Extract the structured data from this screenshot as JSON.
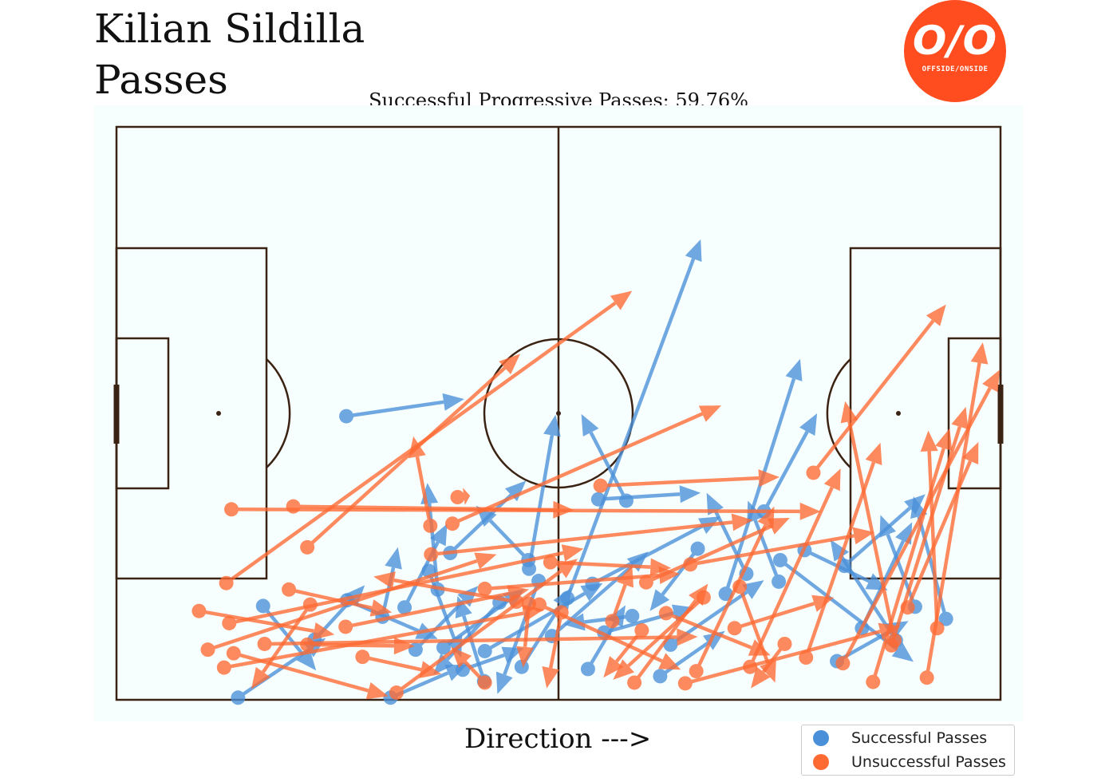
{
  "title_line1": "Kilian Sildilla",
  "title_line2": "Passes",
  "subtitle": "Successful Progressive Passes: 59.76%",
  "logo": {
    "mark": "O/O",
    "text": "OFFSIDE/ONSIDE",
    "color": "#ff4d1f"
  },
  "direction_label": "Direction --->",
  "legend": {
    "successful": "Successful Passes",
    "unsuccessful": "Unsuccessful Passes"
  },
  "colors": {
    "successful": "#4a90d9",
    "unsuccessful": "#ff6a33",
    "pitch_line": "#3b2314",
    "pitch_bg": "#f7fffe"
  },
  "chart_data": {
    "type": "scatter",
    "pitch": {
      "length": 120,
      "width": 80
    },
    "series": [
      {
        "name": "Successful Passes",
        "passes": [
          [
            31.2,
            39.6,
            47.2,
            42.0
          ],
          [
            65.4,
            28.0,
            79.3,
            28.9
          ],
          [
            69.2,
            27.8,
            63.1,
            39.9
          ],
          [
            61.2,
            14.2,
            79.3,
            64.3
          ],
          [
            39.1,
            12.9,
            44.9,
            24.6
          ],
          [
            56.0,
            18.3,
            59.6,
            39.8
          ],
          [
            43.6,
            15.4,
            42.2,
            30.3
          ],
          [
            42.4,
            18.0,
            46.8,
            5.9
          ],
          [
            44.4,
            7.3,
            55.4,
            15.5
          ],
          [
            57.3,
            16.6,
            51.7,
            0.8
          ],
          [
            36.1,
            11.6,
            38.2,
            21.3
          ],
          [
            45.3,
            20.5,
            55.6,
            30.6
          ],
          [
            31.3,
            13.9,
            43.6,
            8.5
          ],
          [
            50.0,
            6.8,
            66.0,
            16.3
          ],
          [
            59.1,
            8.9,
            72.2,
            20.7
          ],
          [
            64.6,
            16.2,
            82.0,
            25.6
          ],
          [
            75.2,
            7.7,
            87.9,
            16.7
          ],
          [
            82.7,
            14.8,
            92.8,
            47.6
          ],
          [
            87.9,
            26.3,
            95.1,
            40.0
          ],
          [
            93.4,
            20.9,
            104.7,
            15.3
          ],
          [
            98.8,
            18.7,
            109.8,
            28.7
          ],
          [
            105.8,
            8.3,
            96.9,
            22.4
          ],
          [
            108.4,
            13.0,
            103.7,
            25.8
          ],
          [
            112.6,
            11.3,
            108.2,
            28.4
          ],
          [
            101.2,
            10.0,
            108.0,
            24.8
          ],
          [
            89.9,
            16.5,
            85.7,
            27.8
          ],
          [
            78.9,
            21.1,
            72.4,
            12.4
          ],
          [
            66.2,
            9.4,
            78.4,
            12.9
          ],
          [
            70.0,
            11.7,
            60.7,
            10.5
          ],
          [
            40.6,
            7.0,
            49.1,
            15.9
          ],
          [
            52.0,
            13.6,
            43.0,
            3.5
          ],
          [
            55.0,
            4.6,
            61.8,
            15.7
          ],
          [
            47.0,
            4.2,
            55.3,
            7.2
          ],
          [
            16.5,
            0.3,
            28.4,
            8.6
          ],
          [
            19.9,
            13.1,
            27.1,
            4.1
          ],
          [
            26.9,
            8.4,
            33.7,
            16.0
          ],
          [
            37.2,
            0.3,
            47.6,
            4.9
          ],
          [
            55.9,
            19.5,
            48.8,
            27.1
          ],
          [
            85.5,
            17.6,
            80.1,
            28.9
          ],
          [
            64.0,
            4.3,
            69.1,
            13.2
          ],
          [
            97.8,
            5.4,
            107.5,
            11.0
          ],
          [
            90.1,
            19.5,
            108.2,
            5.3
          ],
          [
            73.8,
            3.3,
            82.6,
            9.6
          ],
          [
            49.9,
            2.6,
            46.3,
            14.5
          ]
        ]
      },
      {
        "name": "Unsuccessful Passes",
        "passes": [
          [
            15.6,
            26.6,
            95.6,
            26.3
          ],
          [
            24.0,
            27.0,
            62.1,
            26.5
          ],
          [
            25.9,
            21.3,
            54.8,
            48.3
          ],
          [
            14.9,
            16.3,
            70.0,
            57.1
          ],
          [
            15.3,
            10.7,
            63.4,
            21.1
          ],
          [
            12.4,
            7.0,
            51.6,
            20.3
          ],
          [
            14.6,
            4.5,
            58.0,
            12.6
          ],
          [
            20.1,
            7.8,
            78.9,
            8.8
          ],
          [
            45.6,
            24.6,
            82.1,
            41.1
          ],
          [
            42.6,
            24.3,
            40.3,
            36.8
          ],
          [
            46.3,
            28.3,
            48.0,
            28.5
          ],
          [
            42.7,
            20.3,
            86.4,
            25.1
          ],
          [
            65.7,
            29.9,
            90.0,
            31.1
          ],
          [
            58.9,
            19.2,
            75.3,
            18.4
          ],
          [
            71.9,
            16.4,
            91.4,
            25.4
          ],
          [
            77.9,
            18.9,
            102.9,
            23.4
          ],
          [
            94.6,
            31.7,
            112.6,
            55.2
          ],
          [
            110.0,
            3.1,
            117.6,
            49.9
          ],
          [
            107.4,
            12.9,
            117.0,
            36.0
          ],
          [
            105.6,
            8.3,
            98.9,
            41.7
          ],
          [
            102.7,
            2.5,
            113.1,
            37.9
          ],
          [
            93.6,
            5.9,
            103.7,
            35.9
          ],
          [
            86.0,
            4.6,
            98.3,
            32.3
          ],
          [
            78.7,
            4.0,
            89.3,
            27.0
          ],
          [
            71.3,
            9.7,
            66.1,
            3.1
          ],
          [
            67.3,
            11.0,
            70.0,
            18.8
          ],
          [
            79.7,
            14.3,
            67.4,
            2.8
          ],
          [
            84.6,
            15.8,
            89.4,
            2.4
          ],
          [
            57.4,
            13.3,
            76.6,
            4.2
          ],
          [
            90.7,
            7.8,
            86.1,
            1.6
          ],
          [
            38.0,
            1.0,
            62.6,
            19.7
          ],
          [
            33.4,
            6.0,
            44.1,
            3.6
          ],
          [
            26.3,
            13.3,
            18.3,
            1.5
          ],
          [
            23.4,
            15.4,
            37.4,
            12.2
          ],
          [
            50.0,
            15.5,
            76.5,
            17.6
          ],
          [
            60.4,
            12.2,
            58.4,
            1.6
          ],
          [
            54.3,
            13.7,
            34.9,
            17.2
          ],
          [
            31.1,
            10.2,
            56.0,
            15.4
          ],
          [
            11.2,
            12.4,
            29.6,
            9.1
          ],
          [
            15.9,
            6.5,
            36.9,
            0.5
          ],
          [
            25.9,
            7.7,
            40.5,
            7.5
          ],
          [
            74.6,
            12.1,
            88.8,
            6.2
          ],
          [
            70.3,
            2.4,
            80.3,
            16.2
          ],
          [
            98.6,
            5.1,
            119.9,
            46.1
          ],
          [
            111.4,
            10.0,
            110.2,
            37.6
          ],
          [
            105.2,
            7.6,
            115.3,
            40.9
          ],
          [
            77.2,
            2.3,
            106.4,
            10.3
          ],
          [
            83.9,
            10.0,
            97.4,
            14.3
          ],
          [
            50.0,
            2.4,
            45.4,
            7.4
          ],
          [
            56.0,
            13.4,
            55.2,
            4.5
          ]
        ]
      }
    ]
  }
}
